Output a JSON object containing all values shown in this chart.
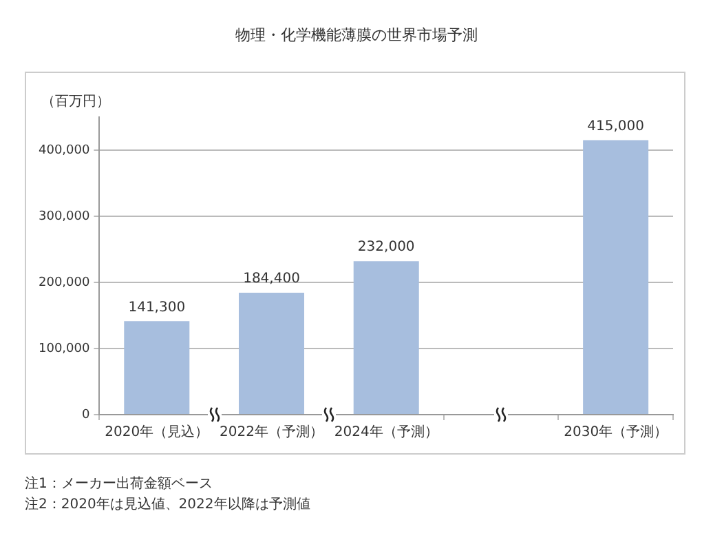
{
  "chart_data": {
    "type": "bar",
    "title": "物理・化学機能薄膜の世界市場予測",
    "ylabel": "（百万円）",
    "categories": [
      "2020年（見込）",
      "2022年（予測）",
      "2024年（予測）",
      null,
      "2030年（予測）"
    ],
    "values": [
      141300,
      184400,
      232000,
      null,
      415000
    ],
    "value_labels": [
      "141,300",
      "184,400",
      "232,000",
      null,
      "415,000"
    ],
    "color": "#a7bede",
    "ylim": [
      0,
      450000
    ],
    "yticks": [
      0,
      {
        "value": 100000,
        "label": "100,000"
      },
      {
        "value": 200000,
        "label": "200,000"
      },
      {
        "value": 300000,
        "label": "300,000"
      },
      {
        "value": 400000,
        "label": "400,000"
      }
    ],
    "grid": "y",
    "legend": false,
    "annotations": [
      "注1：メーカー出荷金額ベース",
      "注2：2020年は見込値、2022年以降は予測値"
    ]
  }
}
